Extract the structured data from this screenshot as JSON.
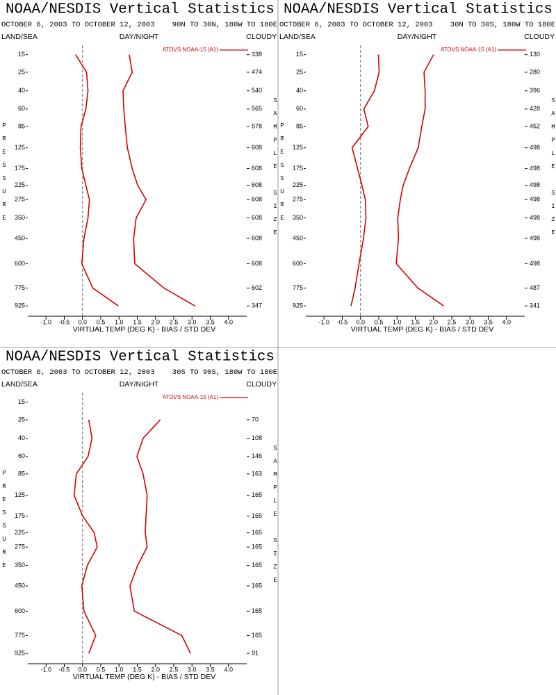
{
  "chart_data": [
    {
      "type": "line",
      "title": "NOAA/NESDIS Vertical Statistics",
      "subtitle": "OCTOBER 6, 2003 TO OCTOBER 12, 2003",
      "region": "90N TO 30N, 180W TO 180E",
      "land_sea_label": "LAND/SEA",
      "day_night_label": "DAY/NIGHT",
      "cloudy_label": "CLOUDY",
      "y_label": "PRESSURE",
      "y2_label": "SAMPLE SIZE",
      "x_label": "VIRTUAL TEMP (DEG K) - BIAS / STD DEV",
      "xlim": [
        -1.5,
        4.5
      ],
      "xticks": [
        {
          "value": -1,
          "label": "-1.0"
        },
        -0.5,
        {
          "value": 0,
          "label": "0.0"
        },
        0.5,
        {
          "value": 1,
          "label": "1.0"
        },
        1.5,
        {
          "value": 2,
          "label": "2.0"
        },
        2.5,
        {
          "value": 3,
          "label": "3.0"
        },
        3.5,
        {
          "value": 4,
          "label": "4.0"
        }
      ],
      "ylim": [
        11,
        1020
      ],
      "yticks": [
        15,
        25,
        40,
        60,
        85,
        125,
        175,
        225,
        275,
        350,
        450,
        600,
        775,
        925
      ],
      "sample_sizes": [
        338,
        474,
        540,
        565,
        578,
        608,
        608,
        608,
        608,
        608,
        608,
        608,
        602,
        347
      ],
      "series": [
        {
          "name": "ATOVS NOAA-15 (A1)",
          "color": "#d40000",
          "bias": [
            -0.19,
            0.11,
            0.15,
            0.09,
            -0.04,
            -0.06,
            -0.02,
            0.09,
            0.19,
            0.15,
            0.04,
            -0.02,
            0.28,
            0.98
          ],
          "std_dev": [
            1.28,
            1.36,
            1.11,
            1.13,
            1.17,
            1.23,
            1.36,
            1.51,
            1.74,
            1.47,
            1.4,
            1.43,
            2.23,
            3.08
          ]
        }
      ]
    },
    {
      "type": "line",
      "title": "NOAA/NESDIS Vertical Statistics",
      "subtitle": "OCTOBER 6, 2003 TO OCTOBER 12, 2003",
      "region": "30N TO 30S, 180W TO 180E",
      "land_sea_label": "LAND/SEA",
      "day_night_label": "DAY/NIGHT",
      "cloudy_label": "CLOUDY",
      "y_label": "PRESSURE",
      "y2_label": "SAMPLE SIZE",
      "x_label": "VIRTUAL TEMP (DEG K) - BIAS / STD DEV",
      "xlim": [
        -1.5,
        4.5
      ],
      "xticks": [
        {
          "value": -1,
          "label": "-1.0"
        },
        -0.5,
        {
          "value": 0,
          "label": "0.0"
        },
        0.5,
        {
          "value": 1,
          "label": "1.0"
        },
        1.5,
        {
          "value": 2,
          "label": "2.0"
        },
        2.5,
        {
          "value": 3,
          "label": "3.0"
        },
        3.5,
        {
          "value": 4,
          "label": "4.0"
        }
      ],
      "ylim": [
        11,
        1020
      ],
      "yticks": [
        15,
        25,
        40,
        60,
        85,
        125,
        175,
        225,
        275,
        350,
        450,
        600,
        775,
        925
      ],
      "sample_sizes": [
        130,
        280,
        396,
        428,
        452,
        498,
        498,
        498,
        498,
        498,
        498,
        498,
        487,
        341
      ],
      "series": [
        {
          "name": "ATOVS NOAA-15 (A1)",
          "color": "#d40000",
          "bias": [
            0.49,
            0.51,
            0.38,
            0.09,
            0.21,
            -0.23,
            -0.08,
            0.04,
            0.13,
            0.15,
            0.08,
            -0.04,
            -0.15,
            -0.26
          ],
          "std_dev": [
            2.0,
            1.74,
            1.77,
            1.77,
            1.68,
            1.58,
            1.34,
            1.17,
            1.09,
            1.02,
            1.04,
            0.98,
            1.57,
            2.28
          ]
        }
      ]
    },
    {
      "type": "line",
      "title": "NOAA/NESDIS Vertical Statistics",
      "subtitle": "OCTOBER 6, 2003 TO OCTOBER 12, 2003",
      "region": "30S TO 90S, 180W TO 180E",
      "land_sea_label": "LAND/SEA",
      "day_night_label": "DAY/NIGHT",
      "cloudy_label": "CLOUDY",
      "y_label": "PRESSURE",
      "y2_label": "SAMPLE SIZE",
      "x_label": "VIRTUAL TEMP (DEG K) - BIAS / STD DEV",
      "xlim": [
        -1.5,
        4.5
      ],
      "xticks": [
        {
          "value": -1,
          "label": "-1.0"
        },
        -0.5,
        {
          "value": 0,
          "label": "0.0"
        },
        0.5,
        {
          "value": 1,
          "label": "1.0"
        },
        1.5,
        {
          "value": 2,
          "label": "2.0"
        },
        2.5,
        {
          "value": 3,
          "label": "3.0"
        },
        3.5,
        {
          "value": 4,
          "label": "4.0"
        }
      ],
      "ylim": [
        11,
        1020
      ],
      "yticks": [
        15,
        25,
        40,
        60,
        85,
        125,
        175,
        225,
        275,
        350,
        450,
        600,
        775,
        925
      ],
      "sample_sizes": [
        null,
        70,
        108,
        146,
        163,
        165,
        165,
        165,
        165,
        165,
        165,
        165,
        165,
        91
      ],
      "series": [
        {
          "name": "ATOVS NOAA-15 (A1)",
          "color": "#d40000",
          "bias": [
            null,
            0.17,
            0.26,
            0.15,
            -0.17,
            -0.23,
            0,
            0.32,
            0.4,
            0.13,
            -0.02,
            0.04,
            0.36,
            0.17
          ],
          "std_dev": [
            null,
            2.13,
            1.66,
            1.49,
            1.66,
            1.77,
            1.74,
            1.72,
            1.77,
            1.51,
            1.3,
            1.42,
            2.72,
            2.96
          ]
        }
      ]
    }
  ]
}
